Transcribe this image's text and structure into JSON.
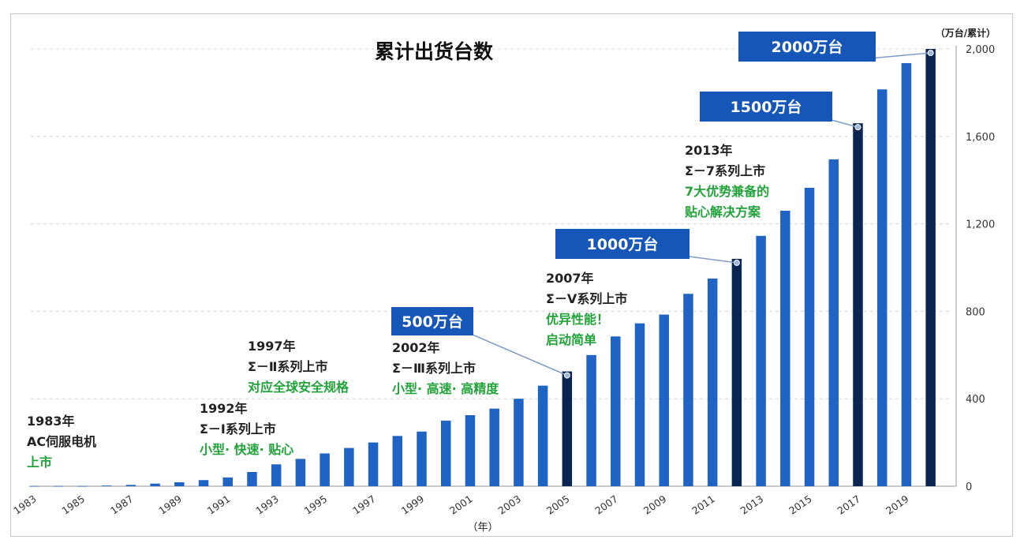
{
  "chart_data": {
    "type": "bar",
    "title": "累计出货台数",
    "unit_label": "（万台/累计）",
    "xlabel": "（年）",
    "ylim": [
      0,
      2000
    ],
    "yticks": [
      "0",
      "400",
      "800",
      "1,200",
      "1,600",
      "2,000"
    ],
    "grid": true,
    "years": [
      1983,
      1984,
      1985,
      1986,
      1987,
      1988,
      1989,
      1990,
      1991,
      1992,
      1993,
      1994,
      1995,
      1996,
      1997,
      1998,
      1999,
      2000,
      2001,
      2002,
      2003,
      2004,
      2005,
      2006,
      2007,
      2008,
      2009,
      2010,
      2011,
      2012,
      2013,
      2014,
      2015,
      2016,
      2017,
      2018,
      2019,
      2020
    ],
    "xtick_labels": [
      "1983",
      "1985",
      "1987",
      "1989",
      "1991",
      "1993",
      "1995",
      "1997",
      "1999",
      "2001",
      "2003",
      "2005",
      "2007",
      "2009",
      "2011",
      "2013",
      "2015",
      "2017",
      "2019"
    ],
    "values": [
      1,
      1,
      1,
      3,
      6,
      12,
      18,
      28,
      40,
      65,
      100,
      125,
      150,
      175,
      200,
      230,
      250,
      300,
      325,
      355,
      400,
      460,
      525,
      600,
      685,
      745,
      785,
      880,
      950,
      1040,
      1145,
      1260,
      1365,
      1495,
      1660,
      1815,
      1935,
      2000
    ],
    "highlight_years": [
      2005,
      2012,
      2017,
      2020
    ],
    "colors": {
      "bar": "#1f63c4",
      "highlight": "#0a2550",
      "callout": "#1656b8",
      "grid": "#d4d4d4",
      "leader": "#7f9cc8"
    },
    "callouts": [
      {
        "label": "500万台",
        "year": 2005,
        "value": 525
      },
      {
        "label": "1000万台",
        "year": 2012,
        "value": 1040
      },
      {
        "label": "1500万台",
        "year": 2017,
        "value": 1660
      },
      {
        "label": "2000万台",
        "year": 2020,
        "value": 2000
      }
    ]
  },
  "annotations": {
    "a1983": {
      "year": "1983年",
      "line1": "AC伺服电机",
      "line2": "上市"
    },
    "a1992": {
      "year": "1992年",
      "line1": "Σ－Ⅰ系列上市",
      "line2": "小型· 快速· 贴心"
    },
    "a1997": {
      "year": "1997年",
      "line1": "Σ－Ⅱ系列上市",
      "line2": "对应全球安全规格"
    },
    "a2002": {
      "year": "2002年",
      "line1": "Σ－Ⅲ系列上市",
      "line2": "小型· 高速· 高精度"
    },
    "a2007": {
      "year": "2007年",
      "line1": "Σ－Ⅴ系列上市",
      "line2": "优异性能！",
      "line3": "启动简单"
    },
    "a2013": {
      "year": "2013年",
      "line1": "Σ－7系列上市",
      "line2": "7大优势兼备的",
      "line3": "贴心解决方案"
    }
  }
}
